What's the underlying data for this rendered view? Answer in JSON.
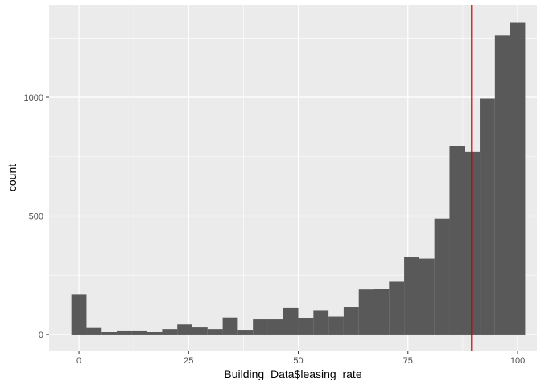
{
  "chart_data": {
    "type": "bar",
    "subtype": "histogram",
    "xlabel": "Building_Data$leasing_rate",
    "ylabel": "count",
    "xlim": [
      -6.8,
      104.4
    ],
    "ylim": [
      -68,
      1390
    ],
    "binwidth": 3.4483,
    "bin_centers": [
      0,
      3.4483,
      6.8966,
      10.3448,
      13.7931,
      17.2414,
      20.6897,
      24.1379,
      27.5862,
      31.0345,
      34.4828,
      37.931,
      41.3793,
      44.8276,
      48.2759,
      51.7241,
      55.1724,
      58.6207,
      62.069,
      65.5172,
      68.9655,
      72.4138,
      75.8621,
      79.3103,
      82.7586,
      86.2069,
      89.6552,
      93.1034,
      96.5517,
      100
    ],
    "counts": [
      168,
      28,
      10,
      17,
      17,
      10,
      23,
      43,
      30,
      23,
      72,
      20,
      64,
      64,
      112,
      71,
      100,
      76,
      115,
      189,
      193,
      222,
      326,
      320,
      489,
      795,
      770,
      995,
      1260,
      1317
    ],
    "x_ticks": [
      0,
      25,
      50,
      75,
      100
    ],
    "x_tick_labels": [
      "0",
      "25",
      "50",
      "75",
      "100"
    ],
    "y_ticks": [
      0,
      500,
      1000
    ],
    "y_tick_labels": [
      "0",
      "500",
      "1000"
    ],
    "bar_color": "#595959",
    "panel_background": "#ebebeb",
    "grid_color": "#ffffff",
    "vline": {
      "x": 89.5,
      "color": "#cc0000"
    },
    "grid": true,
    "legend": "none"
  }
}
